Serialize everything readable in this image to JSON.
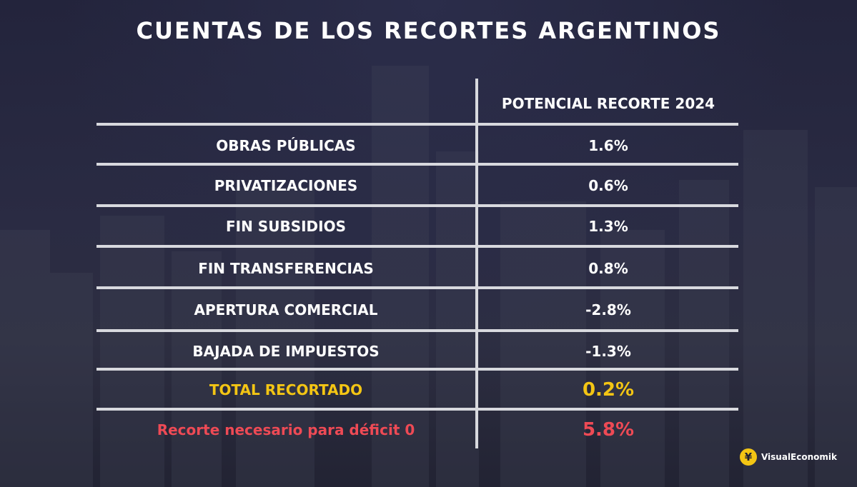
{
  "title": "CUENTAS DE LOS RECORTES ARGENTINOS",
  "table": {
    "column_header": "POTENCIAL RECORTE 2024",
    "rows": [
      {
        "label": "OBRAS PÚBLICAS",
        "value": "1.6%"
      },
      {
        "label": "PRIVATIZACIONES",
        "value": "0.6%"
      },
      {
        "label": "FIN SUBSIDIOS",
        "value": "1.3%"
      },
      {
        "label": "FIN TRANSFERENCIAS",
        "value": "0.8%"
      },
      {
        "label": "APERTURA COMERCIAL",
        "value": "-2.8%"
      },
      {
        "label": "BAJADA DE IMPUESTOS",
        "value": "-1.3%"
      }
    ],
    "total": {
      "label": "TOTAL RECORTADO",
      "value": "0.2%"
    },
    "needed": {
      "label": "Recorte necesario para déficit 0",
      "value": "5.8%"
    }
  },
  "colors": {
    "total": "#f3c514",
    "needed": "#ee4a55",
    "background": "#25263e"
  },
  "brand": {
    "name": "VisualEconomik",
    "logo_icon": "yen-coin-icon",
    "logo_glyph": "¥"
  }
}
